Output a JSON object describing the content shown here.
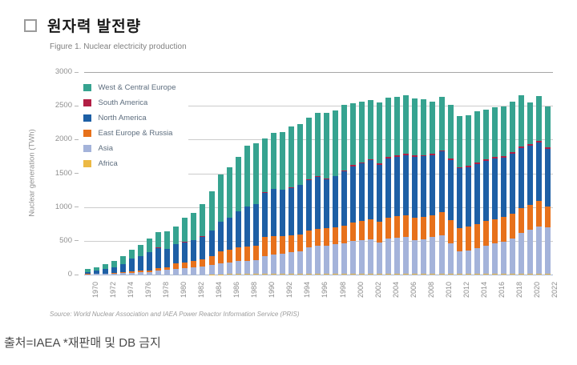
{
  "header": {
    "title": "원자력 발전량",
    "bullet_icon": "square-outline-icon"
  },
  "figure": {
    "caption": "Figure 1. Nuclear electricity production",
    "source": "Source: World Nuclear Association and IAEA Power Reactor Information Service (PRIS)"
  },
  "footer": {
    "text": "출처=IAEA *재판매 및 DB 금지"
  },
  "colors": {
    "gridline": "#cccccc",
    "top_gridline": "#a6a6a6",
    "baseline": "#a9b7cf",
    "axis_text": "#8f8f8f",
    "legend_text": "#5d6d7e"
  },
  "chart_data": {
    "type": "bar",
    "stacked": true,
    "title": "Figure 1. Nuclear electricity production",
    "xlabel": "",
    "ylabel": "Nuclear generation (TWh)",
    "ylim": [
      0,
      3000
    ],
    "yticks": [
      0,
      500,
      1000,
      1500,
      2000,
      2500,
      3000
    ],
    "grid": true,
    "legend_position": "top-left",
    "x_tick_step": 2,
    "x": [
      1970,
      1971,
      1972,
      1973,
      1974,
      1975,
      1976,
      1977,
      1978,
      1979,
      1980,
      1981,
      1982,
      1983,
      1984,
      1985,
      1986,
      1987,
      1988,
      1989,
      1990,
      1991,
      1992,
      1993,
      1994,
      1995,
      1996,
      1997,
      1998,
      1999,
      2000,
      2001,
      2002,
      2003,
      2004,
      2005,
      2006,
      2007,
      2008,
      2009,
      2010,
      2011,
      2012,
      2013,
      2014,
      2015,
      2016,
      2017,
      2018,
      2019,
      2020,
      2021,
      2022
    ],
    "stack_order_bottom_to_top": [
      "Africa",
      "Asia",
      "East Europe & Russia",
      "North America",
      "South America",
      "West & Central Europe"
    ],
    "legend_order": [
      "West & Central Europe",
      "South America",
      "North America",
      "East Europe & Russia",
      "Asia",
      "Africa"
    ],
    "series": [
      {
        "name": "West & Central Europe",
        "color": "#36a390",
        "values": [
          45,
          55,
          74,
          93,
          108,
          127,
          167,
          197,
          232,
          257,
          259,
          357,
          396,
          475,
          572,
          694,
          747,
          797,
          896,
          903,
          796,
          827,
          847,
          899,
          896,
          909,
          943,
          966,
          966,
          971,
          920,
          896,
          880,
          904,
          877,
          864,
          871,
          848,
          827,
          768,
          787,
          801,
          755,
          745,
          759,
          741,
          741,
          739,
          751,
          762,
          615,
          669,
          600
        ]
      },
      {
        "name": "South America",
        "color": "#b21f45",
        "values": [
          0,
          0,
          0,
          0,
          2,
          3,
          3,
          3,
          3,
          3,
          3,
          3,
          4,
          5,
          6,
          6,
          6,
          6,
          6,
          7,
          9,
          9,
          9,
          9,
          9,
          10,
          10,
          11,
          11,
          11,
          17,
          18,
          18,
          18,
          19,
          19,
          19,
          19,
          20,
          20,
          21,
          21,
          21,
          21,
          21,
          23,
          24,
          21,
          23,
          24,
          23,
          24,
          24
        ]
      },
      {
        "name": "North America",
        "color": "#1d5fa5",
        "values": [
          25,
          42,
          60,
          90,
          124,
          191,
          210,
          274,
          298,
          270,
          290,
          300,
          310,
          330,
          380,
          440,
          470,
          530,
          590,
          610,
          650,
          700,
          690,
          700,
          730,
          750,
          770,
          730,
          750,
          800,
          830,
          850,
          870,
          850,
          880,
          885,
          890,
          900,
          895,
          890,
          900,
          890,
          880,
          885,
          890,
          890,
          895,
          880,
          890,
          890,
          880,
          870,
          857
        ]
      },
      {
        "name": "East Europe & Russia",
        "color": "#e7711b",
        "values": [
          4,
          5,
          7,
          9,
          12,
          18,
          22,
          28,
          35,
          42,
          73,
          85,
          95,
          110,
          130,
          170,
          185,
          200,
          215,
          220,
          280,
          270,
          260,
          255,
          245,
          250,
          255,
          250,
          255,
          265,
          280,
          290,
          300,
          305,
          315,
          320,
          325,
          330,
          335,
          330,
          340,
          345,
          350,
          350,
          355,
          360,
          355,
          360,
          365,
          370,
          370,
          375,
          310
        ]
      },
      {
        "name": "Asia",
        "color": "#a4b3da",
        "values": [
          5,
          9,
          11,
          11,
          22,
          28,
          36,
          32,
          62,
          70,
          88,
          93,
          105,
          120,
          140,
          165,
          175,
          200,
          195,
          200,
          270,
          285,
          295,
          320,
          340,
          390,
          410,
          420,
          435,
          450,
          480,
          495,
          510,
          460,
          515,
          530,
          545,
          500,
          510,
          540,
          570,
          450,
          332,
          345,
          375,
          420,
          450,
          475,
          520,
          600,
          650,
          700,
          690
        ]
      },
      {
        "name": "Africa",
        "color": "#ecb944",
        "values": [
          0,
          0,
          0,
          0,
          0,
          0,
          0,
          0,
          0,
          0,
          0,
          0,
          0,
          0,
          2,
          5,
          7,
          7,
          8,
          10,
          8,
          9,
          9,
          7,
          10,
          11,
          12,
          13,
          13,
          13,
          13,
          11,
          12,
          13,
          14,
          12,
          10,
          13,
          13,
          12,
          12,
          13,
          12,
          14,
          15,
          11,
          15,
          15,
          11,
          14,
          12,
          12,
          10
        ]
      }
    ]
  }
}
